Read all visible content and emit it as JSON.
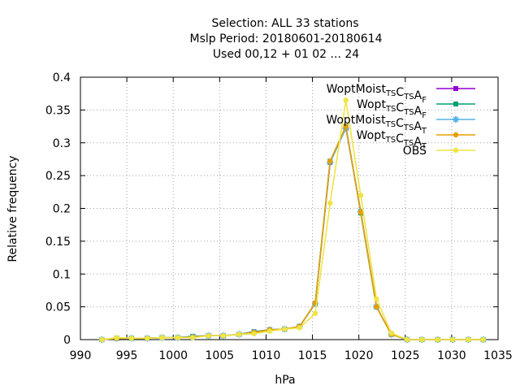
{
  "chart_data": {
    "type": "line",
    "title_lines": [
      "Selection: ALL      33 stations",
      "Mslp  Period: 20180601-20180614",
      "Used  00,12  + 01 02 ... 24"
    ],
    "xlabel": "hPa",
    "ylabel": "Relative frequency",
    "xlim": [
      990,
      1035
    ],
    "ylim": [
      0,
      0.4
    ],
    "xticks": [
      "990",
      "995",
      "1000",
      "1005",
      "1010",
      "1015",
      "1020",
      "1025",
      "1030",
      "1035"
    ],
    "yticks": [
      "0",
      "0.05",
      "0.1",
      "0.15",
      "0.2",
      "0.25",
      "0.3",
      "0.35",
      "0.4"
    ],
    "grid": true,
    "legend_position": "top-right",
    "series": [
      {
        "name": "WoptMoist",
        "subscripts": [
          "TS",
          "TS",
          "F"
        ],
        "color": "#9400d3",
        "marker": "square",
        "x": [
          992.3,
          993.9,
          995.5,
          997.2,
          998.8,
          1000.5,
          1002.1,
          1003.8,
          1005.4,
          1007.1,
          1008.7,
          1010.4,
          1012.0,
          1013.6,
          1015.3,
          1016.9,
          1018.6,
          1020.2,
          1021.9,
          1023.5,
          1025.2,
          1026.8,
          1028.5,
          1030.1,
          1031.8,
          1033.4
        ],
        "values": [
          0,
          0.002,
          0.002,
          0.002,
          0.003,
          0.003,
          0.005,
          0.006,
          0.006,
          0.008,
          0.012,
          0.015,
          0.016,
          0.02,
          0.055,
          0.27,
          0.323,
          0.195,
          0.05,
          0.008,
          0,
          0,
          0,
          0,
          0,
          0
        ]
      },
      {
        "name": "Wopt",
        "subscripts": [
          "TS",
          "TS",
          "F"
        ],
        "color": "#009e73",
        "marker": "square",
        "x": [
          992.3,
          993.9,
          995.5,
          997.2,
          998.8,
          1000.5,
          1002.1,
          1003.8,
          1005.4,
          1007.1,
          1008.7,
          1010.4,
          1012.0,
          1013.6,
          1015.3,
          1016.9,
          1018.6,
          1020.2,
          1021.9,
          1023.5,
          1025.2,
          1026.8,
          1028.5,
          1030.1,
          1031.8,
          1033.4
        ],
        "values": [
          0,
          0.002,
          0.002,
          0.002,
          0.003,
          0.003,
          0.005,
          0.006,
          0.006,
          0.008,
          0.012,
          0.015,
          0.016,
          0.02,
          0.055,
          0.272,
          0.325,
          0.193,
          0.05,
          0.008,
          0,
          0,
          0,
          0,
          0,
          0
        ]
      },
      {
        "name": "WoptMoist",
        "subscripts": [
          "TS",
          "TS",
          "T"
        ],
        "color": "#56b4e9",
        "marker": "star",
        "x": [
          992.3,
          993.9,
          995.5,
          997.2,
          998.8,
          1000.5,
          1002.1,
          1003.8,
          1005.4,
          1007.1,
          1008.7,
          1010.4,
          1012.0,
          1013.6,
          1015.3,
          1016.9,
          1018.6,
          1020.2,
          1021.9,
          1023.5,
          1025.2,
          1026.8,
          1028.5,
          1030.1,
          1031.8,
          1033.4
        ],
        "values": [
          0,
          0.002,
          0.002,
          0.002,
          0.003,
          0.003,
          0.004,
          0.006,
          0.006,
          0.008,
          0.011,
          0.015,
          0.016,
          0.02,
          0.055,
          0.27,
          0.322,
          0.195,
          0.05,
          0.008,
          0,
          0,
          0,
          0,
          0,
          0
        ]
      },
      {
        "name": "Wopt",
        "subscripts": [
          "TS",
          "TS",
          "T"
        ],
        "color": "#e69f00",
        "marker": "circle",
        "x": [
          992.3,
          993.9,
          995.5,
          997.2,
          998.8,
          1000.5,
          1002.1,
          1003.8,
          1005.4,
          1007.1,
          1008.7,
          1010.4,
          1012.0,
          1013.6,
          1015.3,
          1016.9,
          1018.6,
          1020.2,
          1021.9,
          1023.5,
          1025.2,
          1026.8,
          1028.5,
          1030.1,
          1031.8,
          1033.4
        ],
        "values": [
          0,
          0.002,
          0.002,
          0.002,
          0.003,
          0.003,
          0.004,
          0.006,
          0.006,
          0.008,
          0.011,
          0.015,
          0.016,
          0.02,
          0.056,
          0.272,
          0.325,
          0.194,
          0.05,
          0.008,
          0,
          0,
          0,
          0,
          0,
          0
        ]
      },
      {
        "name": "OBS",
        "subscripts": [],
        "color": "#f0e442",
        "marker": "circle",
        "x": [
          992.3,
          993.9,
          995.5,
          997.2,
          998.8,
          1000.5,
          1002.1,
          1003.8,
          1005.4,
          1007.1,
          1008.7,
          1010.4,
          1012.0,
          1013.6,
          1015.3,
          1016.9,
          1018.6,
          1020.2,
          1021.9,
          1023.5,
          1025.2,
          1026.8,
          1028.5,
          1030.1,
          1031.8,
          1033.4
        ],
        "values": [
          0,
          0.003,
          0.002,
          0.002,
          0.003,
          0.003,
          0.003,
          0.006,
          0.006,
          0.008,
          0.009,
          0.013,
          0.016,
          0.018,
          0.04,
          0.208,
          0.365,
          0.22,
          0.062,
          0.01,
          0,
          0,
          0,
          0,
          0,
          0
        ]
      }
    ]
  }
}
